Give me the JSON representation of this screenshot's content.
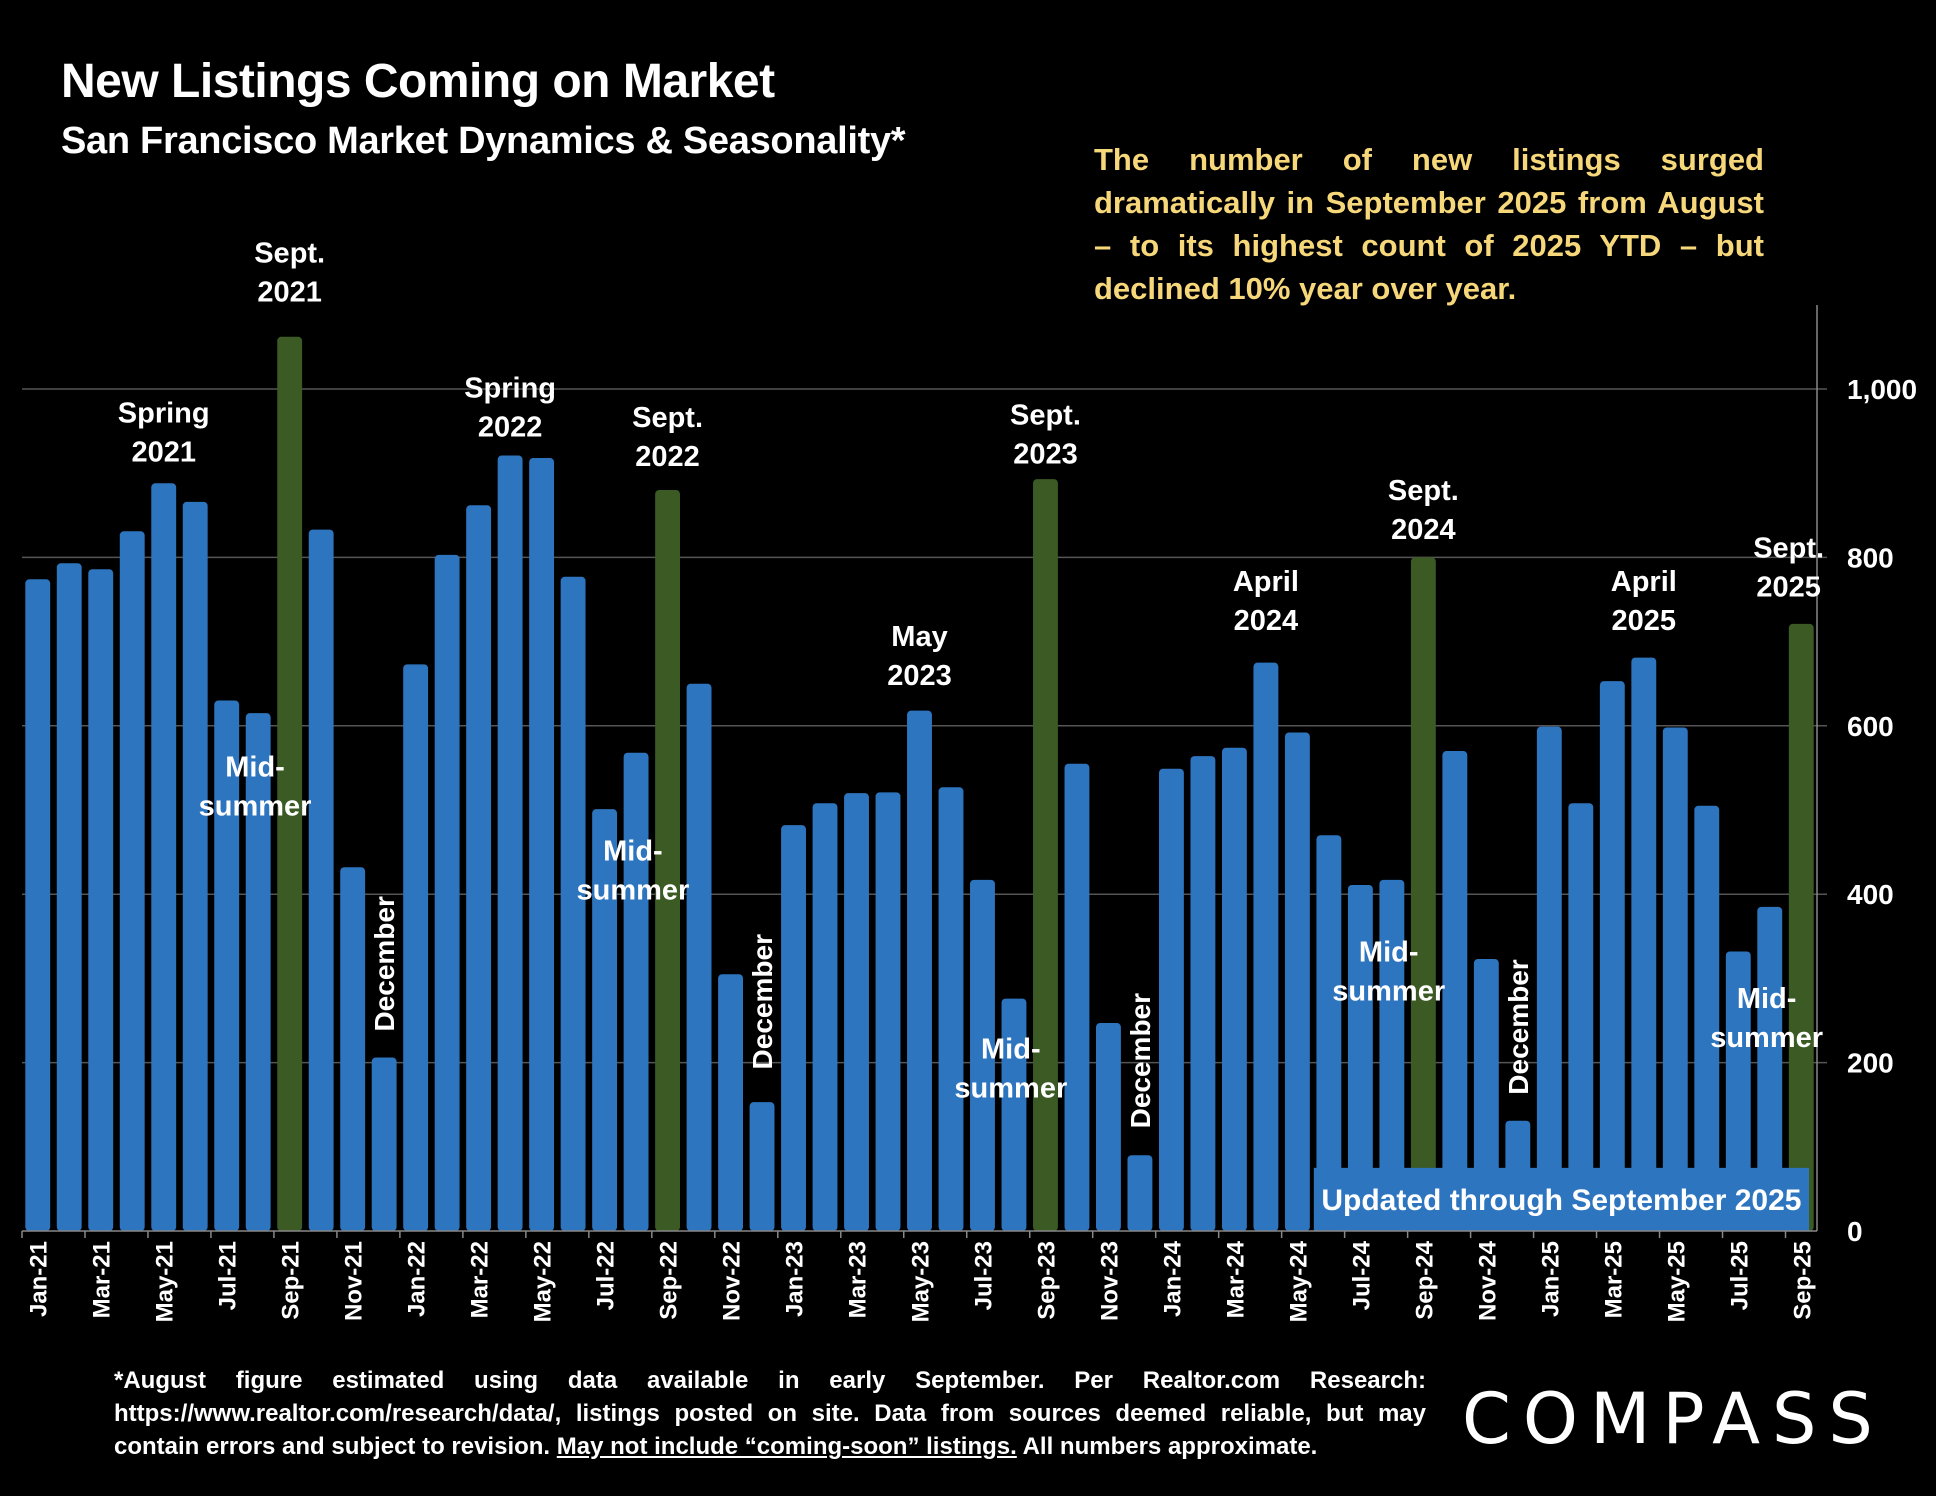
{
  "header": {
    "title": "New Listings Coming on Market",
    "subtitle": "San Francisco Market Dynamics & Seasonality*"
  },
  "note": "The number of new listings surged dramatically in September 2025 from August – to its highest count of 2025 YTD – but declined 10% year over year.",
  "footer": {
    "text_before": "*August figure estimated using data available in early September. Per Realtor.com Research: https://www.realtor.com/research/data/, listings posted on site. Data from sources deemed reliable, but may contain errors and subject to revision. ",
    "underlined": "May not include “coming-soon” listings.",
    "text_after": " All numbers approximate."
  },
  "logo": "COMPASS",
  "colors": {
    "background": "#000000",
    "bar": "#2e75c0",
    "september_bar": "#3b5a24",
    "note_text": "#f6d77a",
    "gridline": "#555555"
  },
  "chart_data": {
    "type": "bar",
    "title": "New Listings Coming on Market",
    "subtitle": "San Francisco Market Dynamics & Seasonality*",
    "xlabel": "",
    "ylabel": "",
    "ylim": [
      0,
      1100
    ],
    "yticks": [
      0,
      200,
      400,
      600,
      800,
      1000
    ],
    "ytick_labels": [
      "0",
      "200",
      "400",
      "600",
      "800",
      "1,000"
    ],
    "y_axis_side": "right",
    "grid": true,
    "categories": [
      "Jan-21",
      "Feb-21",
      "Mar-21",
      "Apr-21",
      "May-21",
      "Jun-21",
      "Jul-21",
      "Aug-21",
      "Sep-21",
      "Oct-21",
      "Nov-21",
      "Dec-21",
      "Jan-22",
      "Feb-22",
      "Mar-22",
      "Apr-22",
      "May-22",
      "Jun-22",
      "Jul-22",
      "Aug-22",
      "Sep-22",
      "Oct-22",
      "Nov-22",
      "Dec-22",
      "Jan-23",
      "Feb-23",
      "Mar-23",
      "Apr-23",
      "May-23",
      "Jun-23",
      "Jul-23",
      "Aug-23",
      "Sep-23",
      "Oct-23",
      "Nov-23",
      "Dec-23",
      "Jan-24",
      "Feb-24",
      "Mar-24",
      "Apr-24",
      "May-24",
      "Jun-24",
      "Jul-24",
      "Aug-24",
      "Sep-24",
      "Oct-24",
      "Nov-24",
      "Dec-24",
      "Jan-25",
      "Feb-25",
      "Mar-25",
      "Apr-25",
      "May-25",
      "Jun-25",
      "Jul-25",
      "Aug-25",
      "Sep-25"
    ],
    "values": [
      774,
      793,
      786,
      831,
      888,
      866,
      630,
      615,
      1062,
      833,
      432,
      206,
      673,
      803,
      862,
      921,
      918,
      777,
      501,
      568,
      880,
      650,
      305,
      153,
      482,
      508,
      520,
      521,
      618,
      527,
      417,
      276,
      893,
      555,
      247,
      90,
      549,
      564,
      574,
      675,
      592,
      470,
      411,
      417,
      800,
      570,
      323,
      131,
      599,
      508,
      653,
      681,
      598,
      505,
      332,
      385,
      721
    ],
    "highlight_indices": [
      8,
      20,
      32,
      44,
      56
    ],
    "annotations": [
      {
        "lines": [
          "Sept.",
          "2021"
        ],
        "index": 8,
        "value": 1150
      },
      {
        "lines": [
          "Spring",
          "2021"
        ],
        "index": 4,
        "value": 960
      },
      {
        "lines": [
          "Spring",
          "2022"
        ],
        "index": 15,
        "value": 990
      },
      {
        "lines": [
          "Sept.",
          "2022"
        ],
        "index": 20,
        "value": 955
      },
      {
        "lines": [
          "Sept.",
          "2023"
        ],
        "index": 32,
        "value": 958
      },
      {
        "lines": [
          "May",
          "2023"
        ],
        "index": 28,
        "value": 695
      },
      {
        "lines": [
          "Sept.",
          "2024"
        ],
        "index": 44,
        "value": 868
      },
      {
        "lines": [
          "April",
          "2024"
        ],
        "index": 39,
        "value": 760
      },
      {
        "lines": [
          "April",
          "2025"
        ],
        "index": 51,
        "value": 760
      },
      {
        "lines": [
          "Sept.",
          "2025"
        ],
        "index": 55.6,
        "value": 800
      },
      {
        "lines": [
          "Mid-",
          "summer"
        ],
        "index": 6.9,
        "value": 540
      },
      {
        "lines": [
          "Mid-",
          "summer"
        ],
        "index": 18.9,
        "value": 440
      },
      {
        "lines": [
          "Mid-",
          "summer"
        ],
        "index": 30.9,
        "value": 205
      },
      {
        "lines": [
          "Mid-",
          "summer"
        ],
        "index": 42.9,
        "value": 320
      },
      {
        "lines": [
          "Mid-",
          "summer"
        ],
        "index": 54.9,
        "value": 265
      }
    ],
    "december_labels": [
      {
        "text": "December",
        "index": 11,
        "value": 225
      },
      {
        "text": "December",
        "index": 23,
        "value": 180
      },
      {
        "text": "December",
        "index": 35,
        "value": 110
      },
      {
        "text": "December",
        "index": 47,
        "value": 150
      }
    ],
    "banner": "Updated through September 2025"
  }
}
